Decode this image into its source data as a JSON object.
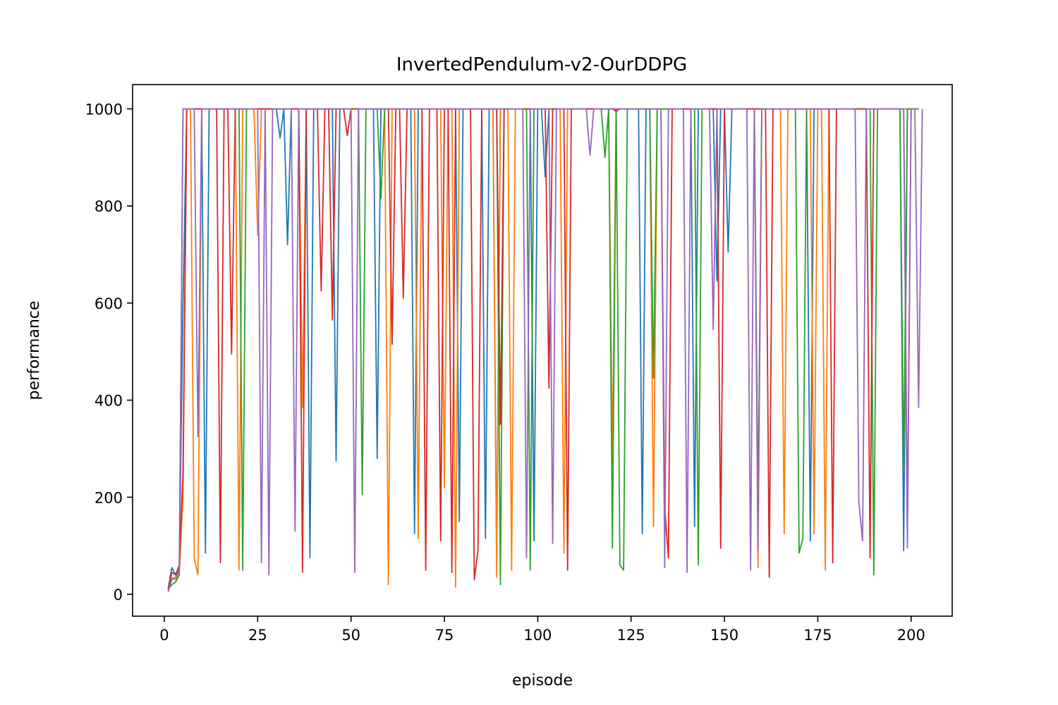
{
  "chart_data": {
    "type": "line",
    "title": "InvertedPendulum-v2-OurDDPG",
    "xlabel": "episode",
    "ylabel": "performance",
    "xlim": [
      -8.5,
      211
    ],
    "ylim": [
      -45,
      1050
    ],
    "xticks": [
      0,
      25,
      50,
      75,
      100,
      125,
      150,
      175,
      200
    ],
    "yticks": [
      0,
      200,
      400,
      600,
      800,
      1000
    ],
    "grid": false,
    "legend": "none",
    "x_start": 1,
    "colors": [
      "#1f77b4",
      "#ff7f0e",
      "#2ca02c",
      "#d62728",
      "#9467bd"
    ],
    "series": [
      {
        "values": [
          10,
          55,
          40,
          60,
          600,
          1000,
          1000,
          1000,
          1000,
          1000,
          85,
          1000,
          1000,
          1000,
          1000,
          1000,
          1000,
          1000,
          1000,
          1000,
          1000,
          1000,
          1000,
          1000,
          1000,
          1000,
          1000,
          1000,
          1000,
          1000,
          940,
          1000,
          720,
          1000,
          1000,
          1000,
          1000,
          1000,
          75,
          1000,
          1000,
          1000,
          1000,
          1000,
          1000,
          275,
          1000,
          1000,
          1000,
          1000,
          1000,
          1000,
          1000,
          1000,
          1000,
          1000,
          280,
          1000,
          1000,
          1000,
          1000,
          1000,
          1000,
          1000,
          1000,
          1000,
          125,
          1000,
          1000,
          1000,
          1000,
          1000,
          1000,
          1000,
          1000,
          1000,
          1000,
          1000,
          150,
          1000,
          1000,
          1000,
          1000,
          1000,
          1000,
          115,
          1000,
          1000,
          65,
          1000,
          1000,
          1000,
          1000,
          1000,
          1000,
          1000,
          1000,
          1000,
          110,
          1000,
          1000,
          860,
          1000,
          1000,
          1000,
          1000,
          1000,
          1000,
          1000,
          1000,
          1000,
          1000,
          1000,
          1000,
          1000,
          1000,
          1000,
          1000,
          1000,
          1000,
          1000,
          1000,
          1000,
          1000,
          1000,
          1000,
          1000,
          125,
          1000,
          1000,
          1000,
          1000,
          1000,
          1000,
          1000,
          1000,
          1000,
          1000,
          1000,
          1000,
          1000,
          140,
          1000,
          1000,
          1000,
          1000,
          1000,
          645,
          1000,
          1000,
          705,
          1000,
          1000,
          1000,
          1000,
          1000,
          1000,
          1000,
          1000,
          1000,
          1000,
          1000,
          1000,
          1000,
          1000,
          1000,
          1000,
          1000,
          1000,
          1000,
          1000,
          1000,
          110,
          1000,
          1000,
          1000,
          1000,
          1000,
          1000,
          1000,
          1000,
          1000,
          1000,
          1000,
          1000,
          1000,
          1000,
          1000,
          1000,
          1000,
          1000,
          1000,
          1000,
          1000,
          1000,
          1000,
          1000,
          90,
          1000,
          1000
        ]
      },
      {
        "values": [
          10,
          35,
          30,
          45,
          200,
          1000,
          1000,
          75,
          40,
          1000,
          1000,
          1000,
          1000,
          1000,
          1000,
          1000,
          1000,
          1000,
          1000,
          50,
          1000,
          1000,
          1000,
          1000,
          740,
          1000,
          1000,
          1000,
          1000,
          1000,
          1000,
          1000,
          1000,
          1000,
          1000,
          1000,
          385,
          1000,
          1000,
          1000,
          1000,
          1000,
          1000,
          1000,
          1000,
          1000,
          1000,
          1000,
          1000,
          1000,
          1000,
          1000,
          1000,
          1000,
          1000,
          1000,
          1000,
          1000,
          1000,
          20,
          1000,
          1000,
          1000,
          1000,
          1000,
          1000,
          1000,
          115,
          1000,
          1000,
          1000,
          1000,
          1000,
          1000,
          220,
          1000,
          1000,
          15,
          1000,
          1000,
          1000,
          1000,
          1000,
          1000,
          1000,
          1000,
          1000,
          1000,
          35,
          1000,
          1000,
          1000,
          50,
          1000,
          1000,
          1000,
          1000,
          1000,
          1000,
          1000,
          1000,
          1000,
          1000,
          1000,
          1000,
          1000,
          85,
          1000,
          1000,
          1000,
          1000,
          1000,
          1000,
          1000,
          1000,
          1000,
          1000,
          1000,
          1000,
          270,
          1000,
          1000,
          1000,
          1000,
          1000,
          1000,
          1000,
          1000,
          1000,
          1000,
          140,
          1000,
          1000,
          1000,
          1000,
          1000,
          1000,
          1000,
          1000,
          1000,
          1000,
          1000,
          1000,
          1000,
          1000,
          1000,
          1000,
          1000,
          1000,
          1000,
          1000,
          1000,
          1000,
          1000,
          1000,
          1000,
          1000,
          1000,
          55,
          1000,
          1000,
          1000,
          1000,
          1000,
          1000,
          125,
          1000,
          1000,
          1000,
          1000,
          1000,
          1000,
          1000,
          125,
          1000,
          1000,
          50,
          1000,
          1000,
          1000,
          1000,
          1000,
          1000,
          1000,
          1000,
          1000,
          1000,
          1000,
          1000,
          1000,
          1000,
          1000,
          1000,
          1000,
          1000,
          1000,
          1000,
          1000,
          1000,
          1000,
          1000,
          1000
        ]
      },
      {
        "values": [
          10,
          20,
          25,
          40,
          1000,
          1000,
          1000,
          1000,
          1000,
          1000,
          1000,
          1000,
          1000,
          1000,
          1000,
          1000,
          1000,
          1000,
          1000,
          1000,
          50,
          1000,
          1000,
          1000,
          1000,
          1000,
          1000,
          1000,
          1000,
          1000,
          1000,
          1000,
          1000,
          1000,
          1000,
          1000,
          1000,
          1000,
          1000,
          1000,
          1000,
          1000,
          1000,
          1000,
          1000,
          1000,
          1000,
          1000,
          1000,
          1000,
          1000,
          1000,
          205,
          1000,
          1000,
          1000,
          1000,
          815,
          1000,
          1000,
          1000,
          1000,
          1000,
          1000,
          1000,
          1000,
          1000,
          1000,
          1000,
          1000,
          1000,
          1000,
          1000,
          1000,
          1000,
          1000,
          1000,
          1000,
          1000,
          1000,
          1000,
          1000,
          1000,
          1000,
          1000,
          1000,
          1000,
          1000,
          1000,
          20,
          1000,
          1000,
          1000,
          1000,
          1000,
          1000,
          1000,
          50,
          1000,
          1000,
          1000,
          1000,
          1000,
          1000,
          1000,
          1000,
          1000,
          1000,
          1000,
          1000,
          1000,
          1000,
          1000,
          1000,
          1000,
          1000,
          1000,
          900,
          1000,
          95,
          1000,
          60,
          50,
          1000,
          1000,
          1000,
          1000,
          1000,
          1000,
          1000,
          445,
          1000,
          1000,
          1000,
          1000,
          1000,
          1000,
          1000,
          1000,
          1000,
          1000,
          1000,
          60,
          1000,
          1000,
          1000,
          1000,
          1000,
          1000,
          1000,
          1000,
          1000,
          1000,
          1000,
          1000,
          1000,
          1000,
          1000,
          180,
          1000,
          1000,
          1000,
          1000,
          1000,
          1000,
          1000,
          1000,
          1000,
          1000,
          85,
          115,
          1000,
          1000,
          1000,
          1000,
          1000,
          1000,
          1000,
          1000,
          1000,
          1000,
          1000,
          1000,
          1000,
          1000,
          1000,
          1000,
          1000,
          1000,
          40,
          1000,
          1000,
          1000,
          1000,
          1000,
          1000,
          1000,
          250,
          1000,
          1000,
          1000,
          1000
        ]
      },
      {
        "values": [
          10,
          45,
          40,
          55,
          250,
          1000,
          1000,
          1000,
          1000,
          1000,
          1000,
          1000,
          1000,
          1000,
          65,
          1000,
          1000,
          495,
          1000,
          1000,
          1000,
          1000,
          1000,
          1000,
          1000,
          1000,
          1000,
          1000,
          1000,
          1000,
          1000,
          1000,
          1000,
          1000,
          1000,
          1000,
          45,
          1000,
          1000,
          1000,
          1000,
          625,
          1000,
          1000,
          565,
          1000,
          1000,
          1000,
          945,
          1000,
          1000,
          1000,
          1000,
          1000,
          1000,
          1000,
          1000,
          1000,
          1000,
          1000,
          515,
          1000,
          1000,
          610,
          1000,
          1000,
          1000,
          1000,
          1000,
          50,
          1000,
          1000,
          1000,
          110,
          1000,
          1000,
          45,
          1000,
          1000,
          1000,
          1000,
          1000,
          30,
          90,
          1000,
          1000,
          1000,
          1000,
          1000,
          350,
          1000,
          1000,
          1000,
          1000,
          1000,
          1000,
          1000,
          1000,
          1000,
          1000,
          1000,
          1000,
          425,
          1000,
          1000,
          1000,
          1000,
          50,
          1000,
          1000,
          1000,
          1000,
          1000,
          1000,
          1000,
          1000,
          1000,
          1000,
          1000,
          1000,
          995,
          1000,
          1000,
          1000,
          1000,
          1000,
          1000,
          1000,
          1000,
          1000,
          1000,
          1000,
          1000,
          180,
          75,
          1000,
          1000,
          1000,
          1000,
          1000,
          1000,
          1000,
          1000,
          1000,
          1000,
          1000,
          1000,
          1000,
          95,
          1000,
          1000,
          1000,
          1000,
          1000,
          1000,
          1000,
          1000,
          1000,
          1000,
          1000,
          1000,
          35,
          1000,
          1000,
          1000,
          1000,
          1000,
          1000,
          1000,
          1000,
          1000,
          1000,
          1000,
          1000,
          1000,
          1000,
          1000,
          1000,
          65,
          1000,
          1000,
          1000,
          1000,
          1000,
          1000,
          1000,
          1000,
          1000,
          75,
          1000,
          1000,
          1000,
          1000,
          1000,
          1000,
          1000,
          1000,
          1000,
          135,
          1000
        ]
      },
      {
        "values": [
          5,
          30,
          35,
          50,
          1000,
          1000,
          1000,
          1000,
          325,
          1000,
          1000,
          1000,
          1000,
          1000,
          1000,
          1000,
          1000,
          1000,
          1000,
          1000,
          1000,
          1000,
          1000,
          1000,
          1000,
          65,
          1000,
          40,
          1000,
          1000,
          1000,
          1000,
          1000,
          1000,
          130,
          1000,
          1000,
          1000,
          1000,
          1000,
          1000,
          1000,
          1000,
          1000,
          1000,
          1000,
          1000,
          1000,
          1000,
          1000,
          45,
          1000,
          1000,
          1000,
          1000,
          1000,
          1000,
          1000,
          1000,
          1000,
          1000,
          1000,
          1000,
          1000,
          1000,
          1000,
          1000,
          1000,
          1000,
          1000,
          1000,
          1000,
          1000,
          1000,
          1000,
          1000,
          1000,
          1000,
          1000,
          1000,
          1000,
          1000,
          1000,
          1000,
          1000,
          1000,
          1000,
          1000,
          1000,
          1000,
          1000,
          1000,
          1000,
          1000,
          1000,
          1000,
          75,
          1000,
          1000,
          1000,
          1000,
          1000,
          1000,
          105,
          1000,
          1000,
          1000,
          1000,
          1000,
          1000,
          1000,
          1000,
          1000,
          905,
          1000,
          1000,
          1000,
          1000,
          1000,
          1000,
          1000,
          1000,
          1000,
          1000,
          1000,
          1000,
          1000,
          1000,
          1000,
          1000,
          1000,
          1000,
          1000,
          55,
          1000,
          1000,
          1000,
          1000,
          1000,
          45,
          1000,
          1000,
          1000,
          1000,
          1000,
          1000,
          545,
          1000,
          1000,
          1000,
          1000,
          1000,
          1000,
          1000,
          1000,
          1000,
          50,
          1000,
          90,
          1000,
          1000,
          1000,
          1000,
          1000,
          1000,
          1000,
          1000,
          1000,
          1000,
          1000,
          1000,
          1000,
          1000,
          1000,
          1000,
          1000,
          1000,
          1000,
          1000,
          1000,
          1000,
          1000,
          1000,
          1000,
          1000,
          190,
          110,
          1000,
          1000,
          1000,
          1000,
          1000,
          1000,
          1000,
          1000,
          1000,
          1000,
          1000,
          95,
          1000,
          1000,
          385,
          1000
        ]
      }
    ]
  }
}
